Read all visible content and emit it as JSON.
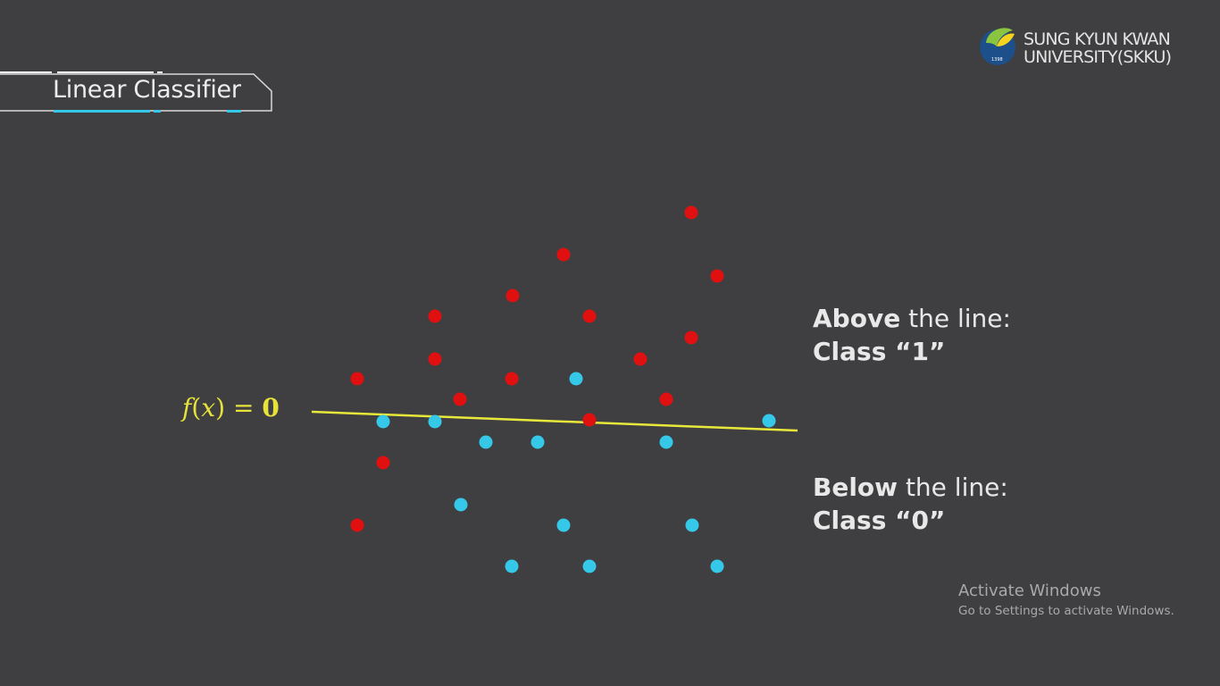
{
  "slide": {
    "title": "Linear Classifier",
    "logo": {
      "line1": "SUNG KYUN KWAN",
      "line2": "UNIVERSITY(SKKU)",
      "year": "1398"
    },
    "boundary_label": {
      "f": "f",
      "open": "(",
      "x": "x",
      "close": ")",
      "equals": "=",
      "zero": "0"
    },
    "above_note": {
      "bold": "Above",
      "rest": " the line:",
      "class_line": "Class “1”"
    },
    "below_note": {
      "bold": "Below",
      "rest": " the line:",
      "class_line": "Class “0”"
    },
    "watermark": {
      "title": "Activate Windows",
      "subtitle": "Go to Settings to activate Windows."
    }
  },
  "colors": {
    "background": "#3f3f41",
    "class1": "#e01010",
    "class0": "#35c8e8",
    "boundary": "#e8e83a",
    "accent": "#35c8e8"
  },
  "chart_data": {
    "type": "scatter",
    "series": [
      {
        "name": "Class “1”",
        "color": "#e01010",
        "points": [
          [
            774,
            238
          ],
          [
            631,
            285
          ],
          [
            803,
            309
          ],
          [
            574,
            331
          ],
          [
            487,
            354
          ],
          [
            660,
            354
          ],
          [
            774,
            378
          ],
          [
            487,
            402
          ],
          [
            717,
            402
          ],
          [
            400,
            424
          ],
          [
            573,
            424
          ],
          [
            515,
            447
          ],
          [
            746,
            447
          ],
          [
            660,
            470
          ],
          [
            429,
            518
          ],
          [
            400,
            588
          ]
        ]
      },
      {
        "name": "Class “0”",
        "color": "#35c8e8",
        "points": [
          [
            645,
            424
          ],
          [
            429,
            472
          ],
          [
            487,
            472
          ],
          [
            861,
            471
          ],
          [
            544,
            495
          ],
          [
            602,
            495
          ],
          [
            746,
            495
          ],
          [
            516,
            565
          ],
          [
            631,
            588
          ],
          [
            775,
            588
          ],
          [
            573,
            634
          ],
          [
            660,
            634
          ],
          [
            803,
            634
          ]
        ]
      }
    ],
    "boundary": {
      "x": [
        349,
        893
      ],
      "y": [
        461,
        482
      ]
    }
  }
}
